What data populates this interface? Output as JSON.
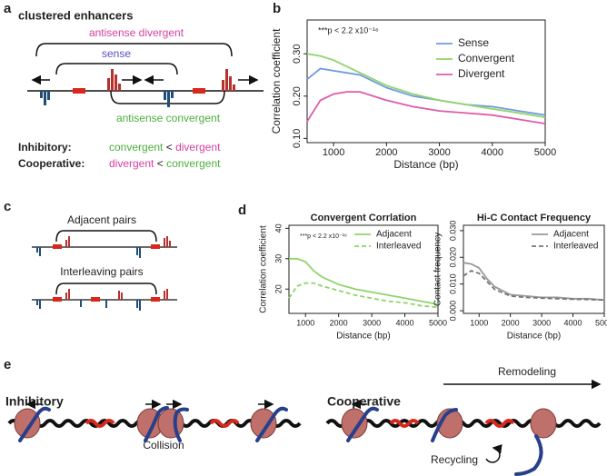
{
  "panel_labels": [
    "a",
    "b",
    "c",
    "d",
    "e"
  ],
  "diagram_a": {
    "title": "clustered enhancers",
    "brackets": [
      "antisense divergent",
      "sense",
      "antisense convergent"
    ],
    "rows": [
      {
        "name": "Inhibitory:",
        "left": "convergent",
        "op": "<",
        "right": "divergent"
      },
      {
        "name": "Cooperative:",
        "left": "divergent",
        "op": "<",
        "right": "convergent"
      }
    ]
  },
  "diagram_c": {
    "labels": [
      "Adjacent pairs",
      "Interleaving pairs"
    ]
  },
  "diagram_e": {
    "inhibitory": {
      "title": "Inhibitory",
      "label": "Collision"
    },
    "cooperative": {
      "title": "Cooperative",
      "labels": [
        "Remodeling",
        "Recycling"
      ]
    }
  },
  "chart_data": [
    {
      "type": "line",
      "ylabel": "Correlation coefficient",
      "xlabel": "Distance (bp)",
      "annotation": "***p < 2.2 x10⁻¹⁶",
      "x": [
        500,
        750,
        1000,
        1250,
        1500,
        2000,
        2500,
        3000,
        3500,
        4000,
        4500,
        5000
      ],
      "xlim": [
        500,
        5000
      ],
      "xticks": [
        1000,
        2000,
        3000,
        4000,
        5000
      ],
      "ylim": [
        0.09,
        0.38
      ],
      "yticks": [
        {
          "value": 0.1,
          "label": "0.10"
        },
        {
          "value": 0.2,
          "label": "0.20"
        },
        {
          "value": 0.3,
          "label": "0.30"
        }
      ],
      "legend": "upper right",
      "series": [
        {
          "name": "Sense",
          "color": "#6f9be0",
          "style": "solid",
          "values": [
            0.24,
            0.265,
            0.26,
            0.255,
            0.25,
            0.22,
            0.2,
            0.19,
            0.18,
            0.175,
            0.165,
            0.155
          ]
        },
        {
          "name": "Convergent",
          "color": "#8fd46a",
          "style": "solid",
          "values": [
            0.3,
            0.295,
            0.285,
            0.27,
            0.255,
            0.225,
            0.205,
            0.19,
            0.18,
            0.17,
            0.16,
            0.15
          ]
        },
        {
          "name": "Divergent",
          "color": "#e05aa8",
          "style": "solid",
          "values": [
            0.14,
            0.19,
            0.205,
            0.21,
            0.21,
            0.19,
            0.175,
            0.165,
            0.16,
            0.155,
            0.145,
            0.135
          ]
        }
      ]
    },
    {
      "type": "line",
      "title": "Convergent Corrlation",
      "ylabel": "Correlation coefficient",
      "xlabel": "Distance (bp)",
      "annotation": "***p < 2.2 x10⁻¹⁶",
      "x": [
        500,
        750,
        1000,
        1250,
        1500,
        2000,
        2500,
        3000,
        3500,
        4000,
        4500,
        5000
      ],
      "xlim": [
        500,
        5000
      ],
      "xticks": [
        1000,
        2000,
        3000,
        4000,
        5000
      ],
      "ylim": [
        12,
        41
      ],
      "yticks": [
        20,
        30,
        40
      ],
      "legend": "upper right",
      "series": [
        {
          "name": "Adjacent",
          "color": "#8fd46a",
          "style": "solid",
          "values": [
            30,
            30,
            29,
            26,
            24,
            21.5,
            20,
            19,
            18,
            17,
            16,
            15
          ]
        },
        {
          "name": "Interleaved",
          "color": "#8fd46a",
          "style": "dashed",
          "values": [
            17,
            21,
            22,
            22,
            21,
            19.5,
            18,
            17,
            16,
            15.5,
            14.5,
            14
          ]
        }
      ]
    },
    {
      "type": "line",
      "title": "Hi-C Contact Frequency",
      "ylabel": "Contact frequency",
      "xlabel": "Distance (bp)",
      "x": [
        500,
        750,
        1000,
        1250,
        1500,
        2000,
        2500,
        3000,
        3500,
        4000,
        4500,
        5000
      ],
      "xlim": [
        500,
        5000
      ],
      "xticks": [
        1000,
        2000,
        3000,
        4000,
        5000
      ],
      "ylim": [
        -0.001,
        0.032
      ],
      "yticks": [
        {
          "value": 0,
          "label": "0.000"
        },
        {
          "value": 0.01,
          "label": "0.010"
        },
        {
          "value": 0.02,
          "label": "0.020"
        },
        {
          "value": 0.03,
          "label": "0.030"
        }
      ],
      "legend": "upper right",
      "series": [
        {
          "name": "Adjacent",
          "color": "#999999",
          "style": "solid",
          "values": [
            0.018,
            0.0175,
            0.016,
            0.012,
            0.009,
            0.006,
            0.0055,
            0.005,
            0.005,
            0.0045,
            0.0045,
            0.004
          ]
        },
        {
          "name": "Interleaved",
          "color": "#777777",
          "style": "dashed",
          "values": [
            0.013,
            0.015,
            0.014,
            0.011,
            0.008,
            0.0055,
            0.005,
            0.0047,
            0.0045,
            0.0043,
            0.0042,
            0.004
          ]
        }
      ]
    }
  ]
}
